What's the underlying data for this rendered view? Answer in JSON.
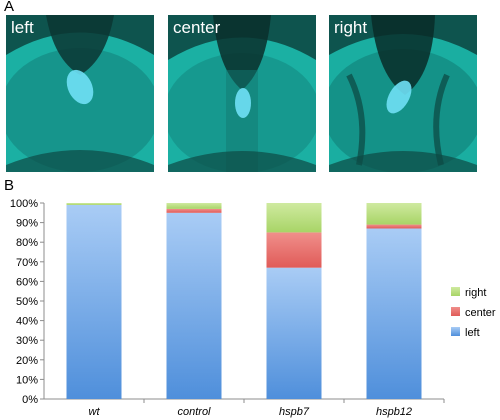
{
  "panels": {
    "a_letter": "A",
    "b_letter": "B"
  },
  "micrographs": [
    {
      "label": "left"
    },
    {
      "label": "center"
    },
    {
      "label": "right"
    }
  ],
  "colors": {
    "left": "#6fa6e5",
    "center": "#e96a66",
    "right": "#b7de78",
    "micro_bg": "#1fb3a6",
    "micro_dark": "#0b3c38"
  },
  "chart_data": {
    "type": "bar",
    "stacked": true,
    "categories": [
      "wt",
      "control",
      "hspb7",
      "hspb12"
    ],
    "series": [
      {
        "name": "left",
        "values": [
          99,
          95,
          67,
          87
        ]
      },
      {
        "name": "center",
        "values": [
          0,
          2,
          18,
          2
        ]
      },
      {
        "name": "right",
        "values": [
          1,
          3,
          15,
          11
        ]
      }
    ],
    "ylim": [
      0,
      100
    ],
    "yticks": [
      "0%",
      "10%",
      "20%",
      "30%",
      "40%",
      "50%",
      "60%",
      "70%",
      "80%",
      "90%",
      "100%"
    ],
    "legend_position": "right",
    "grid": false
  }
}
